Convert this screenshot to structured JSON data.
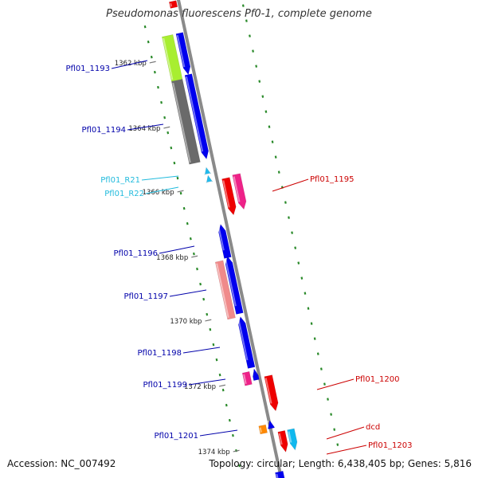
{
  "title": "Pseudomonas fluorescens Pf0-1, complete genome",
  "accession": "Accession: NC_007492",
  "summary": "Topology: circular; Length: 6,438,405 bp; Genes: 5,816",
  "colors": {
    "backbone": "#8a8a8a",
    "tick": "#2a8a2a",
    "gene_blue": "#0000ee",
    "gene_red": "#ee0000",
    "gene_pink": "#ee2288",
    "gene_salmon": "#f08a8a",
    "gene_green": "#a8ee30",
    "gene_gray": "#6a6a6a",
    "gene_cyan": "#10b8ee",
    "gene_orange": "#ff8800",
    "rna_cyan": "#22bbee",
    "label_dark_blue": "#0000aa",
    "label_cyan": "#22bbdd",
    "label_red": "#cc0000"
  },
  "ruler": [
    {
      "label": "1362 kbp"
    },
    {
      "label": "1364 kbp"
    },
    {
      "label": "1366 kbp"
    },
    {
      "label": "1368 kbp"
    },
    {
      "label": "1370 kbp"
    },
    {
      "label": "1372 kbp"
    },
    {
      "label": "1374 kbp"
    }
  ],
  "genes": [
    {
      "name": "Pfl01_1193",
      "side": "left"
    },
    {
      "name": "Pfl01_1194",
      "side": "left"
    },
    {
      "name": "Pfl01_R21",
      "side": "left"
    },
    {
      "name": "Pfl01_R22",
      "side": "left"
    },
    {
      "name": "Pfl01_1195",
      "side": "right"
    },
    {
      "name": "Pfl01_1196",
      "side": "left"
    },
    {
      "name": "Pfl01_1197",
      "side": "left"
    },
    {
      "name": "Pfl01_1198",
      "side": "left"
    },
    {
      "name": "Pfl01_1199",
      "side": "left"
    },
    {
      "name": "Pfl01_1200",
      "side": "right"
    },
    {
      "name": "dcd",
      "side": "right"
    },
    {
      "name": "Pfl01_1201",
      "side": "left"
    },
    {
      "name": "Pfl01_1203",
      "side": "right"
    }
  ]
}
